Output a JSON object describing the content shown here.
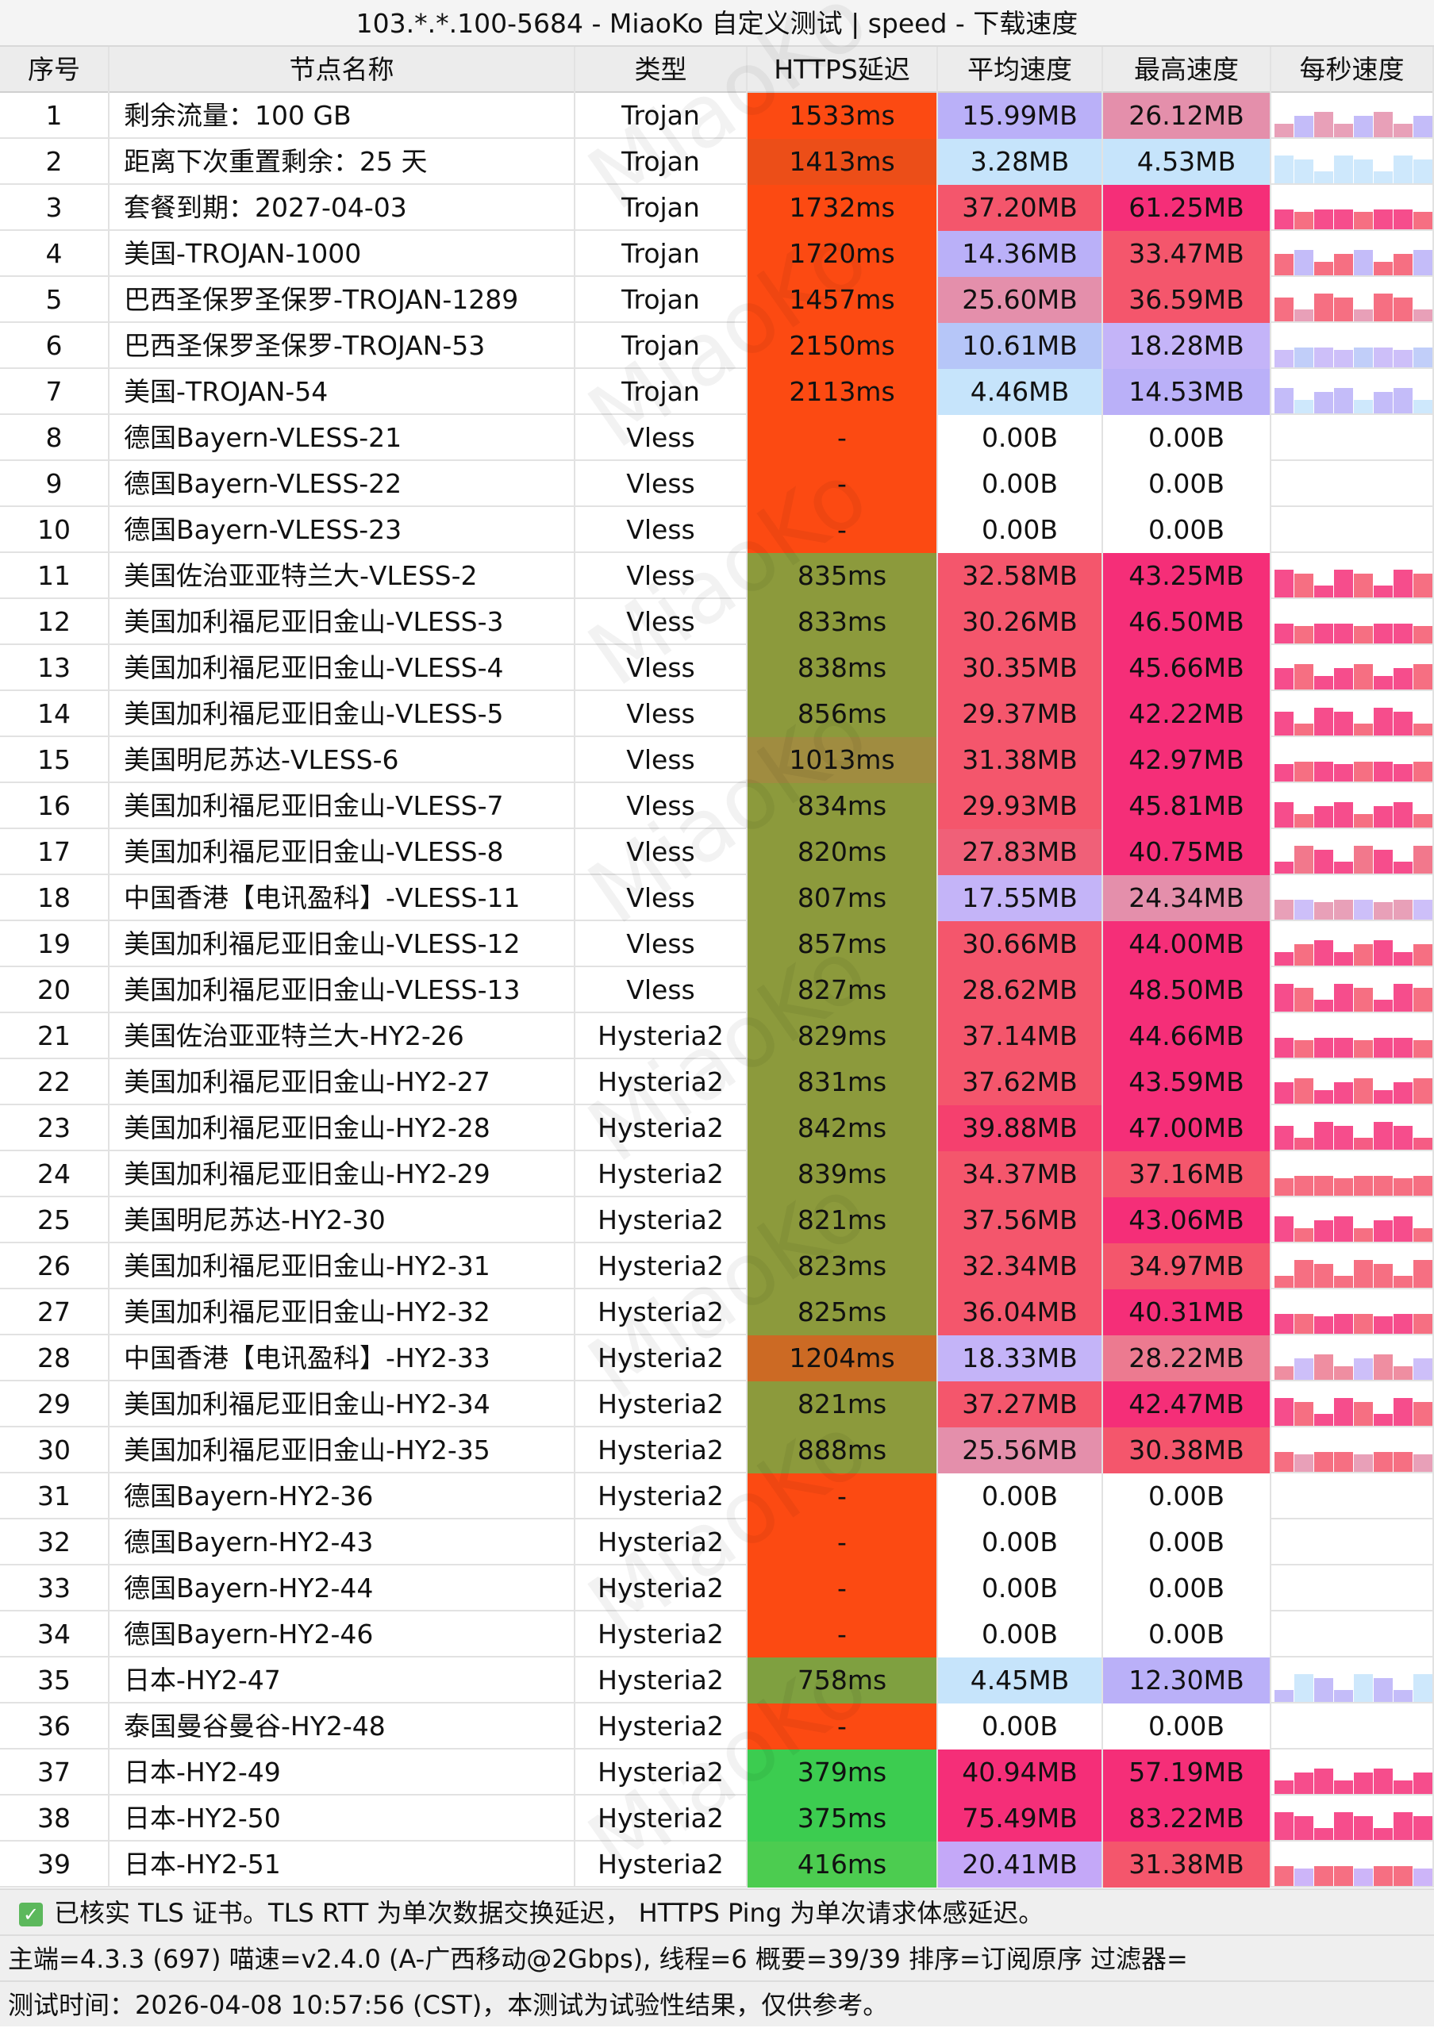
{
  "title": "103.*.*.100-5684 - MiaoKo 自定义测试 | speed - 下载速度",
  "watermark": "MiaoKo",
  "columns": [
    "序号",
    "节点名称",
    "类型",
    "HTTPS延迟",
    "平均速度",
    "最高速度",
    "每秒速度"
  ],
  "rows": [
    {
      "cells": [
        "1",
        "剩余流量：100 GB",
        "Trojan",
        "1533ms",
        "15.99MB",
        "26.12MB"
      ],
      "colors": [
        "#fc4a12",
        "#bab0f8",
        "#e48fab"
      ]
    },
    {
      "cells": [
        "2",
        "距离下次重置剩余：25 天",
        "Trojan",
        "1413ms",
        "3.28MB",
        "4.53MB"
      ],
      "colors": [
        "#ec4e18",
        "#c6e4fb",
        "#c6e4fb"
      ]
    },
    {
      "cells": [
        "3",
        "套餐到期：2027-04-03",
        "Trojan",
        "1732ms",
        "37.20MB",
        "61.25MB"
      ],
      "colors": [
        "#fc4a12",
        "#f4566c",
        "#f52e78"
      ]
    },
    {
      "cells": [
        "4",
        "美国-TROJAN-1000",
        "Trojan",
        "1720ms",
        "14.36MB",
        "33.47MB"
      ],
      "colors": [
        "#fc4a12",
        "#bab0f8",
        "#f4566c"
      ]
    },
    {
      "cells": [
        "5",
        "巴西圣保罗圣保罗-TROJAN-1289",
        "Trojan",
        "1457ms",
        "25.60MB",
        "36.59MB"
      ],
      "colors": [
        "#fc4a12",
        "#e48fab",
        "#f4566c"
      ]
    },
    {
      "cells": [
        "6",
        "巴西圣保罗圣保罗-TROJAN-53",
        "Trojan",
        "2150ms",
        "10.61MB",
        "18.28MB"
      ],
      "colors": [
        "#fc4a12",
        "#b6c6f8",
        "#c4b4f8"
      ]
    },
    {
      "cells": [
        "7",
        "美国-TROJAN-54",
        "Trojan",
        "2113ms",
        "4.46MB",
        "14.53MB"
      ],
      "colors": [
        "#fc4a12",
        "#c6e4fb",
        "#bab0f8"
      ]
    },
    {
      "cells": [
        "8",
        "德国Bayern-VLESS-21",
        "Vless",
        "-",
        "0.00B",
        "0.00B"
      ],
      "colors": [
        "#fc4a12",
        "#ffffff",
        "#ffffff"
      ]
    },
    {
      "cells": [
        "9",
        "德国Bayern-VLESS-22",
        "Vless",
        "-",
        "0.00B",
        "0.00B"
      ],
      "colors": [
        "#fc4a12",
        "#ffffff",
        "#ffffff"
      ]
    },
    {
      "cells": [
        "10",
        "德国Bayern-VLESS-23",
        "Vless",
        "-",
        "0.00B",
        "0.00B"
      ],
      "colors": [
        "#fc4a12",
        "#ffffff",
        "#ffffff"
      ]
    },
    {
      "cells": [
        "11",
        "美国佐治亚亚特兰大-VLESS-2",
        "Vless",
        "835ms",
        "32.58MB",
        "43.25MB"
      ],
      "colors": [
        "#8c9a3c",
        "#f4566c",
        "#f52e78"
      ]
    },
    {
      "cells": [
        "12",
        "美国加利福尼亚旧金山-VLESS-3",
        "Vless",
        "833ms",
        "30.26MB",
        "46.50MB"
      ],
      "colors": [
        "#8c9a3c",
        "#f4566c",
        "#f52e78"
      ]
    },
    {
      "cells": [
        "13",
        "美国加利福尼亚旧金山-VLESS-4",
        "Vless",
        "838ms",
        "30.35MB",
        "45.66MB"
      ],
      "colors": [
        "#8c9a3c",
        "#f4566c",
        "#f52e78"
      ]
    },
    {
      "cells": [
        "14",
        "美国加利福尼亚旧金山-VLESS-5",
        "Vless",
        "856ms",
        "29.37MB",
        "42.22MB"
      ],
      "colors": [
        "#8c9a3c",
        "#f4566c",
        "#f52e78"
      ]
    },
    {
      "cells": [
        "15",
        "美国明尼苏达-VLESS-6",
        "Vless",
        "1013ms",
        "31.38MB",
        "42.97MB"
      ],
      "colors": [
        "#a08c40",
        "#f4566c",
        "#f52e78"
      ]
    },
    {
      "cells": [
        "16",
        "美国加利福尼亚旧金山-VLESS-7",
        "Vless",
        "834ms",
        "29.93MB",
        "45.81MB"
      ],
      "colors": [
        "#8c9a3c",
        "#f4566c",
        "#f52e78"
      ]
    },
    {
      "cells": [
        "17",
        "美国加利福尼亚旧金山-VLESS-8",
        "Vless",
        "820ms",
        "27.83MB",
        "40.75MB"
      ],
      "colors": [
        "#8c9a3c",
        "#f06078",
        "#f52e78"
      ]
    },
    {
      "cells": [
        "18",
        "中国香港【电讯盈科】-VLESS-11",
        "Vless",
        "807ms",
        "17.55MB",
        "24.34MB"
      ],
      "colors": [
        "#8c9a3c",
        "#c4b4f8",
        "#e48fab"
      ]
    },
    {
      "cells": [
        "19",
        "美国加利福尼亚旧金山-VLESS-12",
        "Vless",
        "857ms",
        "30.66MB",
        "44.00MB"
      ],
      "colors": [
        "#8c9a3c",
        "#f4566c",
        "#f52e78"
      ]
    },
    {
      "cells": [
        "20",
        "美国加利福尼亚旧金山-VLESS-13",
        "Vless",
        "827ms",
        "28.62MB",
        "48.50MB"
      ],
      "colors": [
        "#8c9a3c",
        "#f4566c",
        "#f52e78"
      ]
    },
    {
      "cells": [
        "21",
        "美国佐治亚亚特兰大-HY2-26",
        "Hysteria2",
        "829ms",
        "37.14MB",
        "44.66MB"
      ],
      "colors": [
        "#8c9a3c",
        "#f4566c",
        "#f52e78"
      ]
    },
    {
      "cells": [
        "22",
        "美国加利福尼亚旧金山-HY2-27",
        "Hysteria2",
        "831ms",
        "37.62MB",
        "43.59MB"
      ],
      "colors": [
        "#8c9a3c",
        "#f4566c",
        "#f52e78"
      ]
    },
    {
      "cells": [
        "23",
        "美国加利福尼亚旧金山-HY2-28",
        "Hysteria2",
        "842ms",
        "39.88MB",
        "47.00MB"
      ],
      "colors": [
        "#8c9a3c",
        "#f5406e",
        "#f52e78"
      ]
    },
    {
      "cells": [
        "24",
        "美国加利福尼亚旧金山-HY2-29",
        "Hysteria2",
        "839ms",
        "34.37MB",
        "37.16MB"
      ],
      "colors": [
        "#8c9a3c",
        "#f4566c",
        "#f4566c"
      ]
    },
    {
      "cells": [
        "25",
        "美国明尼苏达-HY2-30",
        "Hysteria2",
        "821ms",
        "37.56MB",
        "43.06MB"
      ],
      "colors": [
        "#8c9a3c",
        "#f4566c",
        "#f52e78"
      ]
    },
    {
      "cells": [
        "26",
        "美国加利福尼亚旧金山-HY2-31",
        "Hysteria2",
        "823ms",
        "32.34MB",
        "34.97MB"
      ],
      "colors": [
        "#8c9a3c",
        "#f4566c",
        "#f4566c"
      ]
    },
    {
      "cells": [
        "27",
        "美国加利福尼亚旧金山-HY2-32",
        "Hysteria2",
        "825ms",
        "36.04MB",
        "40.31MB"
      ],
      "colors": [
        "#8c9a3c",
        "#f4566c",
        "#f52e78"
      ]
    },
    {
      "cells": [
        "28",
        "中国香港【电讯盈科】-HY2-33",
        "Hysteria2",
        "1204ms",
        "18.33MB",
        "28.22MB"
      ],
      "colors": [
        "#cc6a24",
        "#c4b4f8",
        "#ec7a90"
      ]
    },
    {
      "cells": [
        "29",
        "美国加利福尼亚旧金山-HY2-34",
        "Hysteria2",
        "821ms",
        "37.27MB",
        "42.47MB"
      ],
      "colors": [
        "#8c9a3c",
        "#f4566c",
        "#f52e78"
      ]
    },
    {
      "cells": [
        "30",
        "美国加利福尼亚旧金山-HY2-35",
        "Hysteria2",
        "888ms",
        "25.56MB",
        "30.38MB"
      ],
      "colors": [
        "#8c9a3c",
        "#e48fab",
        "#f4566c"
      ]
    },
    {
      "cells": [
        "31",
        "德国Bayern-HY2-36",
        "Hysteria2",
        "-",
        "0.00B",
        "0.00B"
      ],
      "colors": [
        "#fc4a12",
        "#ffffff",
        "#ffffff"
      ]
    },
    {
      "cells": [
        "32",
        "德国Bayern-HY2-43",
        "Hysteria2",
        "-",
        "0.00B",
        "0.00B"
      ],
      "colors": [
        "#fc4a12",
        "#ffffff",
        "#ffffff"
      ]
    },
    {
      "cells": [
        "33",
        "德国Bayern-HY2-44",
        "Hysteria2",
        "-",
        "0.00B",
        "0.00B"
      ],
      "colors": [
        "#fc4a12",
        "#ffffff",
        "#ffffff"
      ]
    },
    {
      "cells": [
        "34",
        "德国Bayern-HY2-46",
        "Hysteria2",
        "-",
        "0.00B",
        "0.00B"
      ],
      "colors": [
        "#fc4a12",
        "#ffffff",
        "#ffffff"
      ]
    },
    {
      "cells": [
        "35",
        "日本-HY2-47",
        "Hysteria2",
        "758ms",
        "4.45MB",
        "12.30MB"
      ],
      "colors": [
        "#7fa040",
        "#c6e4fb",
        "#bab0f8"
      ]
    },
    {
      "cells": [
        "36",
        "泰国曼谷曼谷-HY2-48",
        "Hysteria2",
        "-",
        "0.00B",
        "0.00B"
      ],
      "colors": [
        "#fc4a12",
        "#ffffff",
        "#ffffff"
      ]
    },
    {
      "cells": [
        "37",
        "日本-HY2-49",
        "Hysteria2",
        "379ms",
        "40.94MB",
        "57.19MB"
      ],
      "colors": [
        "#3ccc50",
        "#f52e78",
        "#f52e78"
      ]
    },
    {
      "cells": [
        "38",
        "日本-HY2-50",
        "Hysteria2",
        "375ms",
        "75.49MB",
        "83.22MB"
      ],
      "colors": [
        "#3ccc50",
        "#f52e78",
        "#f52e78"
      ]
    },
    {
      "cells": [
        "39",
        "日本-HY2-51",
        "Hysteria2",
        "416ms",
        "20.41MB",
        "31.38MB"
      ],
      "colors": [
        "#4ccc50",
        "#c4a8f8",
        "#f4566c"
      ]
    }
  ],
  "footer": [
    "已核实 TLS 证书。TLS RTT 为单次数据交换延迟， HTTPS Ping 为单次请求体感延迟。",
    "主端=4.3.3 (697) 喵速=v2.4.0 (A-广西移动@2Gbps), 线程=6 概要=39/39 排序=订阅原序 过滤器=",
    "测试时间：2026-04-08 10:57:56 (CST)，本测试为试验性结果，仅供参考。"
  ]
}
